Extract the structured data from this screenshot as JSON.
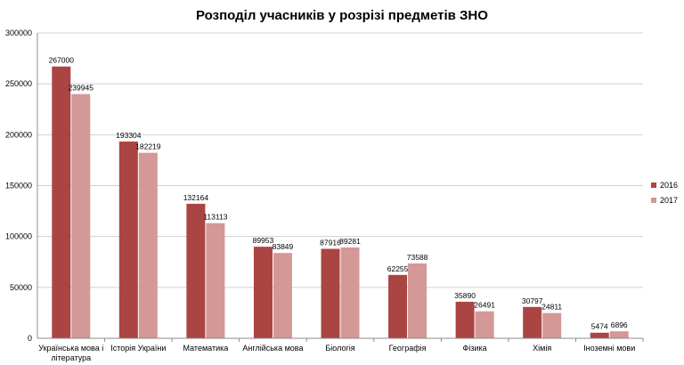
{
  "chart_data": {
    "type": "bar",
    "title": "Розподіл учасників у розрізі предметів ЗНО",
    "categories": [
      [
        "Українська мова і",
        "література"
      ],
      [
        "Історія України"
      ],
      [
        "Математика"
      ],
      [
        "Англійська мова"
      ],
      [
        "Біологія"
      ],
      [
        "Географія"
      ],
      [
        "Фізика"
      ],
      [
        "Хімія"
      ],
      [
        "Іноземні мови"
      ]
    ],
    "series": [
      {
        "name": "2016",
        "color": "#ab4543",
        "values": [
          267000,
          193304,
          132164,
          89953,
          87916,
          62255,
          35890,
          30797,
          5474
        ]
      },
      {
        "name": "2017",
        "color": "#d49896",
        "values": [
          239945,
          182219,
          113113,
          83849,
          89281,
          73588,
          26491,
          24811,
          6896
        ]
      }
    ],
    "yticks": [
      "0",
      "50000",
      "100000",
      "150000",
      "200000",
      "250000",
      "300000"
    ],
    "ylim": [
      0,
      300000
    ],
    "grid": true,
    "legend_position": "right"
  }
}
